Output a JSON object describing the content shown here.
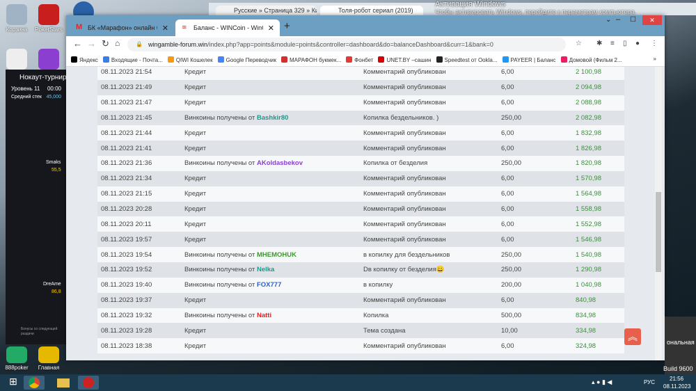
{
  "desktop": {
    "icons": [
      {
        "label": "Корзина"
      },
      {
        "label": "PokerStars"
      },
      {
        "label": "888poker"
      },
      {
        "label": "Главная"
      }
    ],
    "build": "Build 9600",
    "activation_title": "Активация Windows",
    "activation_text": "Чтобы активировать Windows, перейдите к параметрам компьютера.",
    "side_label": "ональная"
  },
  "poker_widget": {
    "title": "Нокаут-турнир",
    "level_label": "Уровень 11",
    "time": "00:00",
    "stack_label": "Средний стек",
    "stack": "45,000",
    "player1": "Smaks",
    "player1_stack": "55,5",
    "player2": "DreAme",
    "player2_stack": "86,8",
    "note": "Бонусы со следующей раздачи"
  },
  "background_tabs": [
    {
      "title": "Русские » Страница 329 » Кино"
    },
    {
      "title": "Толя-робот сериал (2019)"
    }
  ],
  "browser": {
    "tabs": [
      {
        "title": "БК «Марафон» онлайн букмекерская",
        "active": false
      },
      {
        "title": "Баланс - WINCoin - WinGamble",
        "active": true
      }
    ],
    "url_host": "wingamble-forum.win",
    "url_path": "/index.php?app=points&module=points&controller=dashboard&do=balanceDashboard&curr=1&bank=0",
    "bookmarks": [
      {
        "label": "Яндекс",
        "color": "#000"
      },
      {
        "label": "Входящие - Почта...",
        "color": "#3d7de0"
      },
      {
        "label": "QIWI Кошелек",
        "color": "#f39c12"
      },
      {
        "label": "Google Переводчик",
        "color": "#4285f4"
      },
      {
        "label": "МАРАФОН букмек...",
        "color": "#d32f2f"
      },
      {
        "label": "Фонбет",
        "color": "#e53935"
      },
      {
        "label": "UNET.BY –сашин",
        "color": "#d50000"
      },
      {
        "label": "Speedtest от Ookla...",
        "color": "#222"
      },
      {
        "label": "PAYEER | Баланс",
        "color": "#2196f3"
      },
      {
        "label": "Домовой (Фильм 2...",
        "color": "#e91e63"
      }
    ],
    "bookmarks_more": "»"
  },
  "transactions": [
    {
      "date": "08.11.2023 21:54",
      "desc": "Кредит",
      "user": "",
      "comment": "Комментарий опубликован",
      "amount": "6,00",
      "balance": "2 100,98"
    },
    {
      "date": "08.11.2023 21:49",
      "desc": "Кредит",
      "user": "",
      "comment": "Комментарий опубликован",
      "amount": "6,00",
      "balance": "2 094,98"
    },
    {
      "date": "08.11.2023 21:47",
      "desc": "Кредит",
      "user": "",
      "comment": "Комментарий опубликован",
      "amount": "6,00",
      "balance": "2 088,98"
    },
    {
      "date": "08.11.2023 21:45",
      "desc": "Винкоины получены от ",
      "user": "Bashkir80",
      "user_color": "#1a9a8a",
      "comment": "Копилка бездельников. )",
      "amount": "250,00",
      "balance": "2 082,98"
    },
    {
      "date": "08.11.2023 21:44",
      "desc": "Кредит",
      "user": "",
      "comment": "Комментарий опубликован",
      "amount": "6,00",
      "balance": "1 832,98"
    },
    {
      "date": "08.11.2023 21:41",
      "desc": "Кредит",
      "user": "",
      "comment": "Комментарий опубликован",
      "amount": "6,00",
      "balance": "1 826,98"
    },
    {
      "date": "08.11.2023 21:36",
      "desc": "Винкоины получены от ",
      "user": "AKoldasbekov",
      "user_color": "#8a3fd1",
      "comment": "Копилка от безделия",
      "amount": "250,00",
      "balance": "1 820,98"
    },
    {
      "date": "08.11.2023 21:34",
      "desc": "Кредит",
      "user": "",
      "comment": "Комментарий опубликован",
      "amount": "6,00",
      "balance": "1 570,98"
    },
    {
      "date": "08.11.2023 21:15",
      "desc": "Кредит",
      "user": "",
      "comment": "Комментарий опубликован",
      "amount": "6,00",
      "balance": "1 564,98"
    },
    {
      "date": "08.11.2023 20:28",
      "desc": "Кредит",
      "user": "",
      "comment": "Комментарий опубликован",
      "amount": "6,00",
      "balance": "1 558,98"
    },
    {
      "date": "08.11.2023 20:11",
      "desc": "Кредит",
      "user": "",
      "comment": "Комментарий опубликован",
      "amount": "6,00",
      "balance": "1 552,98"
    },
    {
      "date": "08.11.2023 19:57",
      "desc": "Кредит",
      "user": "",
      "comment": "Комментарий опубликован",
      "amount": "6,00",
      "balance": "1 546,98"
    },
    {
      "date": "08.11.2023 19:54",
      "desc": "Винкоины получены от ",
      "user": "MHEMOHUK",
      "user_color": "#3a9a2a",
      "comment": "в копилку для бездельников",
      "amount": "250,00",
      "balance": "1 540,98"
    },
    {
      "date": "08.11.2023 19:52",
      "desc": "Винкоины получены от ",
      "user": "Nelka",
      "user_color": "#1a9a8a",
      "comment": "Dв копилку от безделия😀",
      "amount": "250,00",
      "balance": "1 290,98"
    },
    {
      "date": "08.11.2023 19:40",
      "desc": "Винкоины получены от ",
      "user": "FOX777",
      "user_color": "#2f5fc4",
      "comment": "в копилку",
      "amount": "200,00",
      "balance": "1 040,98"
    },
    {
      "date": "08.11.2023 19:37",
      "desc": "Кредит",
      "user": "",
      "comment": "Комментарий опубликован",
      "amount": "6,00",
      "balance": "840,98"
    },
    {
      "date": "08.11.2023 19:32",
      "desc": "Винкоины получены от ",
      "user": "Natti",
      "user_color": "#e82020",
      "comment": "Копилка",
      "amount": "500,00",
      "balance": "834,98"
    },
    {
      "date": "08.11.2023 19:28",
      "desc": "Кредит",
      "user": "",
      "comment": "Тема создана",
      "amount": "10,00",
      "balance": "334,98"
    },
    {
      "date": "08.11.2023 18:38",
      "desc": "Кредит",
      "user": "",
      "comment": "Комментарий опубликован",
      "amount": "6,00",
      "balance": "324,98"
    }
  ],
  "taskbar": {
    "lang": "РУС",
    "time": "21:56",
    "date": "08.11.2023"
  }
}
